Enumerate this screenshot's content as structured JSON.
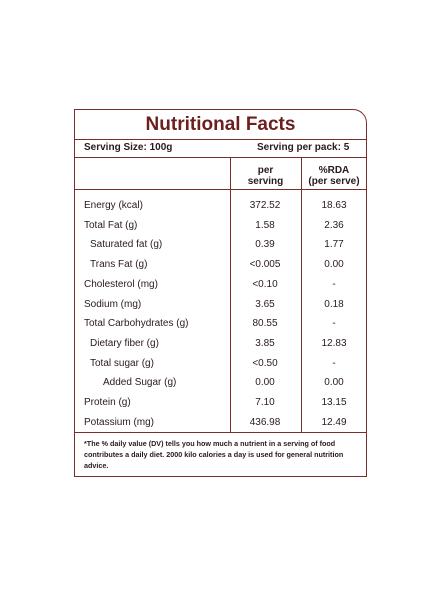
{
  "title": "Nutritional Facts",
  "serving_size": "Serving Size: 100g",
  "serving_per_pack": "Serving per pack: 5",
  "col_per_serving": [
    "per",
    "serving"
  ],
  "col_rda": [
    "%RDA",
    "(per serve)"
  ],
  "rows": [
    {
      "name": "Energy (kcal)",
      "indent": 0,
      "per_serving": "372.52",
      "rda": "18.63"
    },
    {
      "name": "Total Fat (g)",
      "indent": 0,
      "per_serving": "1.58",
      "rda": "2.36"
    },
    {
      "name": "Saturated fat (g)",
      "indent": 1,
      "per_serving": "0.39",
      "rda": "1.77"
    },
    {
      "name": "Trans Fat (g)",
      "indent": 1,
      "per_serving": "<0.005",
      "rda": "0.00"
    },
    {
      "name": "Cholesterol (mg)",
      "indent": 0,
      "per_serving": "<0.10",
      "rda": "-"
    },
    {
      "name": "Sodium (mg)",
      "indent": 0,
      "per_serving": "3.65",
      "rda": "0.18"
    },
    {
      "name": "Total Carbohydrates  (g)",
      "indent": 0,
      "per_serving": "80.55",
      "rda": "-"
    },
    {
      "name": "Dietary fiber (g)",
      "indent": 1,
      "per_serving": "3.85",
      "rda": "12.83"
    },
    {
      "name": "Total sugar (g)",
      "indent": 1,
      "per_serving": "<0.50",
      "rda": "-"
    },
    {
      "name": "Added Sugar (g)",
      "indent": 2,
      "per_serving": "0.00",
      "rda": "0.00"
    },
    {
      "name": "Protein (g)",
      "indent": 0,
      "per_serving": "7.10",
      "rda": "13.15"
    },
    {
      "name": "Potassium (mg)",
      "indent": 0,
      "per_serving": "436.98",
      "rda": "12.49"
    }
  ],
  "footnote": "*The % daily value (DV) tells you how much a nutrient in a serving of food contributes a daily diet. 2000 kilo calories a day is used for general nutrition advice.",
  "colors": {
    "border": "#7a2e2b",
    "title": "#6b1f1f"
  }
}
